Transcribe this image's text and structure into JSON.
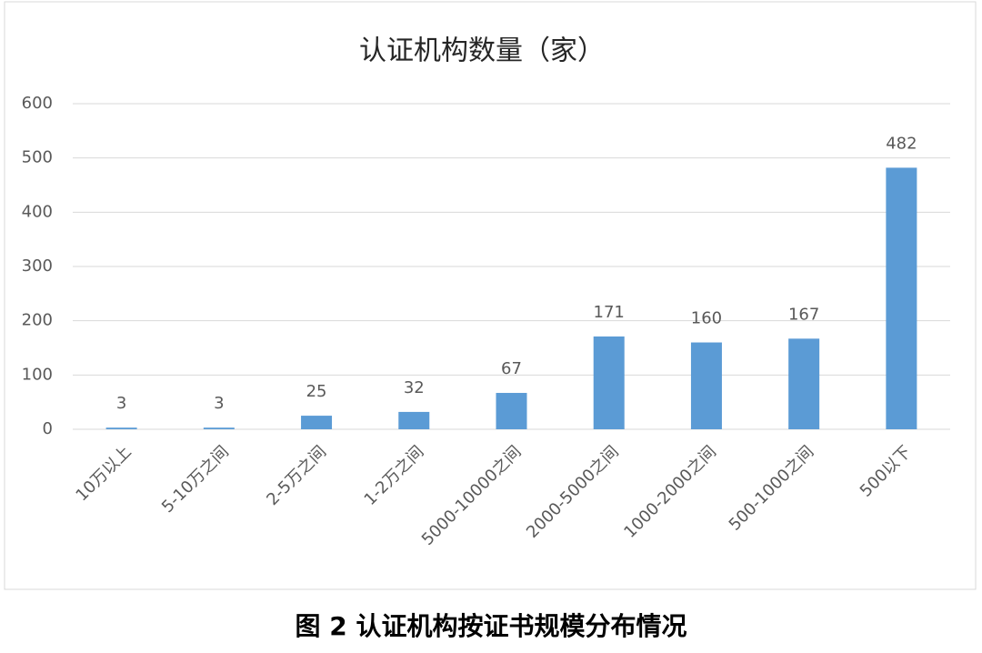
{
  "chart_data": {
    "type": "bar",
    "title": "认证机构数量（家）",
    "categories": [
      "10万以上",
      "5-10万之间",
      "2-5万之间",
      "1-2万之间",
      "5000-10000之间",
      "2000-5000之间",
      "1000-2000之间",
      "500-1000之间",
      "500以下"
    ],
    "values": [
      3,
      3,
      25,
      32,
      67,
      171,
      160,
      167,
      482
    ],
    "color": "#5b9bd5",
    "ylim": [
      0,
      600
    ],
    "yticks": [
      0,
      100,
      200,
      300,
      400,
      500,
      600
    ],
    "grid": true
  },
  "caption": "图 2  认证机构按证书规模分布情况"
}
